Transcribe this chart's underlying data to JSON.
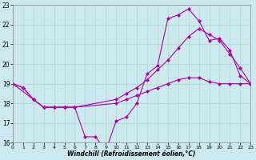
{
  "xlabel": "Windchill (Refroidissement éolien,°C)",
  "xlim": [
    0,
    23
  ],
  "ylim": [
    16,
    23
  ],
  "yticks": [
    16,
    17,
    18,
    19,
    20,
    21,
    22,
    23
  ],
  "xticks": [
    0,
    1,
    2,
    3,
    4,
    5,
    6,
    7,
    8,
    9,
    10,
    11,
    12,
    13,
    14,
    15,
    16,
    17,
    18,
    19,
    20,
    21,
    22,
    23
  ],
  "background_color": "#cde9f0",
  "grid_color": "#b0d8cc",
  "line_color": "#aa00aa",
  "line1_x": [
    0,
    1,
    2,
    3,
    4,
    5,
    6,
    7,
    8,
    9,
    10,
    11,
    12,
    13,
    14,
    15,
    16,
    17,
    18,
    19,
    20,
    21,
    22,
    23
  ],
  "line1_y": [
    19.0,
    18.8,
    18.2,
    17.8,
    17.8,
    17.8,
    17.8,
    16.3,
    16.3,
    15.6,
    17.1,
    17.3,
    18.0,
    19.5,
    19.9,
    22.3,
    22.5,
    22.8,
    22.2,
    21.2,
    21.3,
    20.7,
    19.4,
    19.0
  ],
  "line2_x": [
    0,
    2,
    3,
    4,
    5,
    6,
    10,
    11,
    12,
    13,
    14,
    15,
    16,
    17,
    18,
    19,
    20,
    21,
    22,
    23
  ],
  "line2_y": [
    19.0,
    18.2,
    17.8,
    17.8,
    17.8,
    17.8,
    18.2,
    18.5,
    18.8,
    19.2,
    19.7,
    20.2,
    20.8,
    21.4,
    21.8,
    21.5,
    21.2,
    20.5,
    19.8,
    19.0
  ],
  "line3_x": [
    0,
    1,
    2,
    3,
    4,
    5,
    6,
    10,
    11,
    12,
    13,
    14,
    15,
    16,
    17,
    18,
    19,
    20,
    21,
    22,
    23
  ],
  "line3_y": [
    19.0,
    18.8,
    18.2,
    17.8,
    17.8,
    17.8,
    17.8,
    18.0,
    18.2,
    18.4,
    18.6,
    18.8,
    19.0,
    19.2,
    19.3,
    19.3,
    19.1,
    19.0,
    19.0,
    19.0,
    19.0
  ],
  "markersize": 2.5
}
